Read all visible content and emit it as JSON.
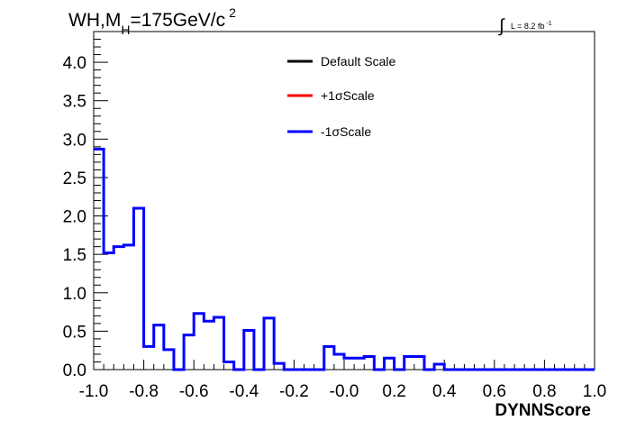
{
  "chart_data": {
    "type": "histogram",
    "title": {
      "main_prefix": "WH,M",
      "main_sub": "H",
      "main_suffix": "=175GeV/c",
      "main_sup": "2"
    },
    "luminosity": {
      "integral_symbol": "∫",
      "text": "L = 8.2 fb",
      "sup": "-1"
    },
    "xlabel": "DYNNScore",
    "ylabel": "",
    "xlim": [
      -1.0,
      1.0
    ],
    "ylim": [
      0.0,
      4.4
    ],
    "x_ticks": [
      "-1.0",
      "-0.8",
      "-0.6",
      "-0.4",
      "-0.2",
      "-0.0",
      "0.2",
      "0.4",
      "0.6",
      "0.8",
      "1.0"
    ],
    "y_ticks": [
      "0.0",
      "0.5",
      "1.0",
      "1.5",
      "2.0",
      "2.5",
      "3.0",
      "3.5",
      "4.0"
    ],
    "legend": {
      "placement": "top-center",
      "entries": [
        {
          "label": "Default Scale",
          "color": "#000000"
        },
        {
          "label": "+1σScale",
          "color": "#ff0000"
        },
        {
          "label": "-1σScale",
          "color": "#0000ff"
        }
      ]
    },
    "bins": {
      "low": -1.0,
      "width": 0.04,
      "values": [
        2.87,
        1.52,
        1.6,
        1.62,
        2.1,
        0.3,
        0.58,
        0.26,
        0.0,
        0.45,
        0.73,
        0.63,
        0.68,
        0.1,
        0.0,
        0.51,
        0.0,
        0.67,
        0.08,
        0.0,
        0.0,
        0.0,
        0.0,
        0.3,
        0.2,
        0.15,
        0.15,
        0.17,
        0.0,
        0.15,
        0.0,
        0.17,
        0.17,
        0.0,
        0.07,
        0.0,
        0.0,
        0.0,
        0.0,
        0.0,
        0.0,
        0.0,
        0.0,
        0.0,
        0.0,
        0.0,
        0.0,
        0.0,
        0.0,
        0.0
      ]
    },
    "series": [
      {
        "name": "-1σScale",
        "color": "#0000ff",
        "drawn_on_top": true
      }
    ]
  }
}
